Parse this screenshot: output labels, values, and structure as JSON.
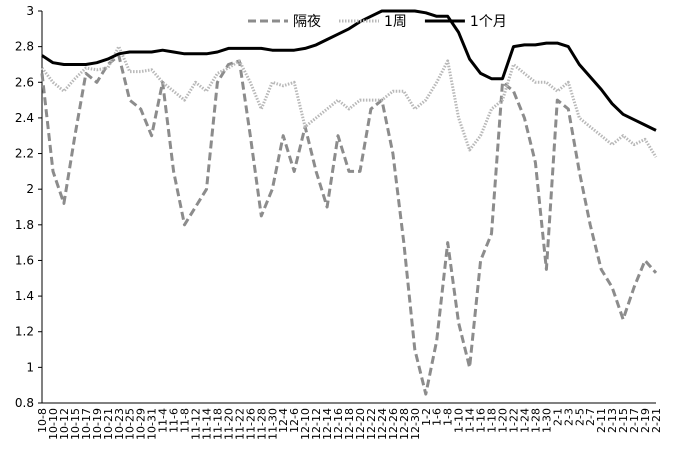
{
  "chart_data": {
    "type": "line",
    "categories": [
      "10-8",
      "10-10",
      "10-12",
      "10-15",
      "10-17",
      "10-19",
      "10-21",
      "10-23",
      "10-25",
      "10-29",
      "10-31",
      "11-4",
      "11-6",
      "11-8",
      "11-12",
      "11-14",
      "11-18",
      "11-20",
      "11-22",
      "11-26",
      "11-28",
      "11-30",
      "12-4",
      "12-6",
      "12-10",
      "12-12",
      "12-14",
      "12-16",
      "12-18",
      "12-20",
      "12-22",
      "12-24",
      "12-26",
      "12-28",
      "12-30",
      "1-2",
      "1-6",
      "1-8",
      "1-10",
      "1-14",
      "1-16",
      "1-18",
      "1-20",
      "1-22",
      "1-24",
      "1-28",
      "1-30",
      "2-1",
      "2-3",
      "2-5",
      "2-7",
      "2-11",
      "2-13",
      "2-15",
      "2-17",
      "2-19",
      "2-21"
    ],
    "series": [
      {
        "name": "隔夜",
        "color": "#8c8c8c",
        "values": [
          2.65,
          2.1,
          1.92,
          2.3,
          2.65,
          2.6,
          2.7,
          2.75,
          2.5,
          2.45,
          2.3,
          2.6,
          2.1,
          1.8,
          1.9,
          2.0,
          2.6,
          2.7,
          2.72,
          2.3,
          1.85,
          2.0,
          2.3,
          2.1,
          2.35,
          2.1,
          1.9,
          2.3,
          2.1,
          2.1,
          2.45,
          2.5,
          2.2,
          1.7,
          1.1,
          0.85,
          1.15,
          1.7,
          1.25,
          1.0,
          1.6,
          1.75,
          2.6,
          2.55,
          2.4,
          2.15,
          1.55,
          2.5,
          2.45,
          2.1,
          1.8,
          1.55,
          1.45,
          1.27,
          1.45,
          1.6,
          1.53
        ]
      },
      {
        "name": "1周",
        "color": "#b8b8b8",
        "values": [
          2.68,
          2.6,
          2.55,
          2.62,
          2.68,
          2.67,
          2.68,
          2.8,
          2.66,
          2.66,
          2.67,
          2.6,
          2.55,
          2.5,
          2.6,
          2.55,
          2.65,
          2.68,
          2.72,
          2.6,
          2.45,
          2.6,
          2.58,
          2.6,
          2.35,
          2.4,
          2.45,
          2.5,
          2.45,
          2.5,
          2.5,
          2.5,
          2.55,
          2.55,
          2.45,
          2.5,
          2.6,
          2.72,
          2.4,
          2.22,
          2.3,
          2.45,
          2.5,
          2.7,
          2.65,
          2.6,
          2.6,
          2.55,
          2.6,
          2.4,
          2.35,
          2.3,
          2.25,
          2.3,
          2.25,
          2.28,
          2.18
        ]
      },
      {
        "name": "1个月",
        "color": "#000000",
        "values": [
          2.75,
          2.71,
          2.7,
          2.7,
          2.7,
          2.71,
          2.73,
          2.76,
          2.77,
          2.77,
          2.77,
          2.78,
          2.77,
          2.76,
          2.76,
          2.76,
          2.77,
          2.79,
          2.79,
          2.79,
          2.79,
          2.78,
          2.78,
          2.78,
          2.79,
          2.81,
          2.84,
          2.87,
          2.9,
          2.94,
          2.97,
          3.0,
          3.0,
          3.0,
          3.0,
          2.99,
          2.97,
          2.97,
          2.88,
          2.73,
          2.65,
          2.62,
          2.62,
          2.8,
          2.81,
          2.81,
          2.82,
          2.82,
          2.8,
          2.7,
          2.63,
          2.56,
          2.48,
          2.42,
          2.39,
          2.36,
          2.33
        ]
      }
    ],
    "ylim": [
      0.8,
      3
    ],
    "yticks": [
      0.8,
      1,
      1.2,
      1.4,
      1.6,
      1.8,
      2,
      2.2,
      2.4,
      2.6,
      2.8,
      3
    ],
    "grid": false,
    "legend": "top"
  }
}
